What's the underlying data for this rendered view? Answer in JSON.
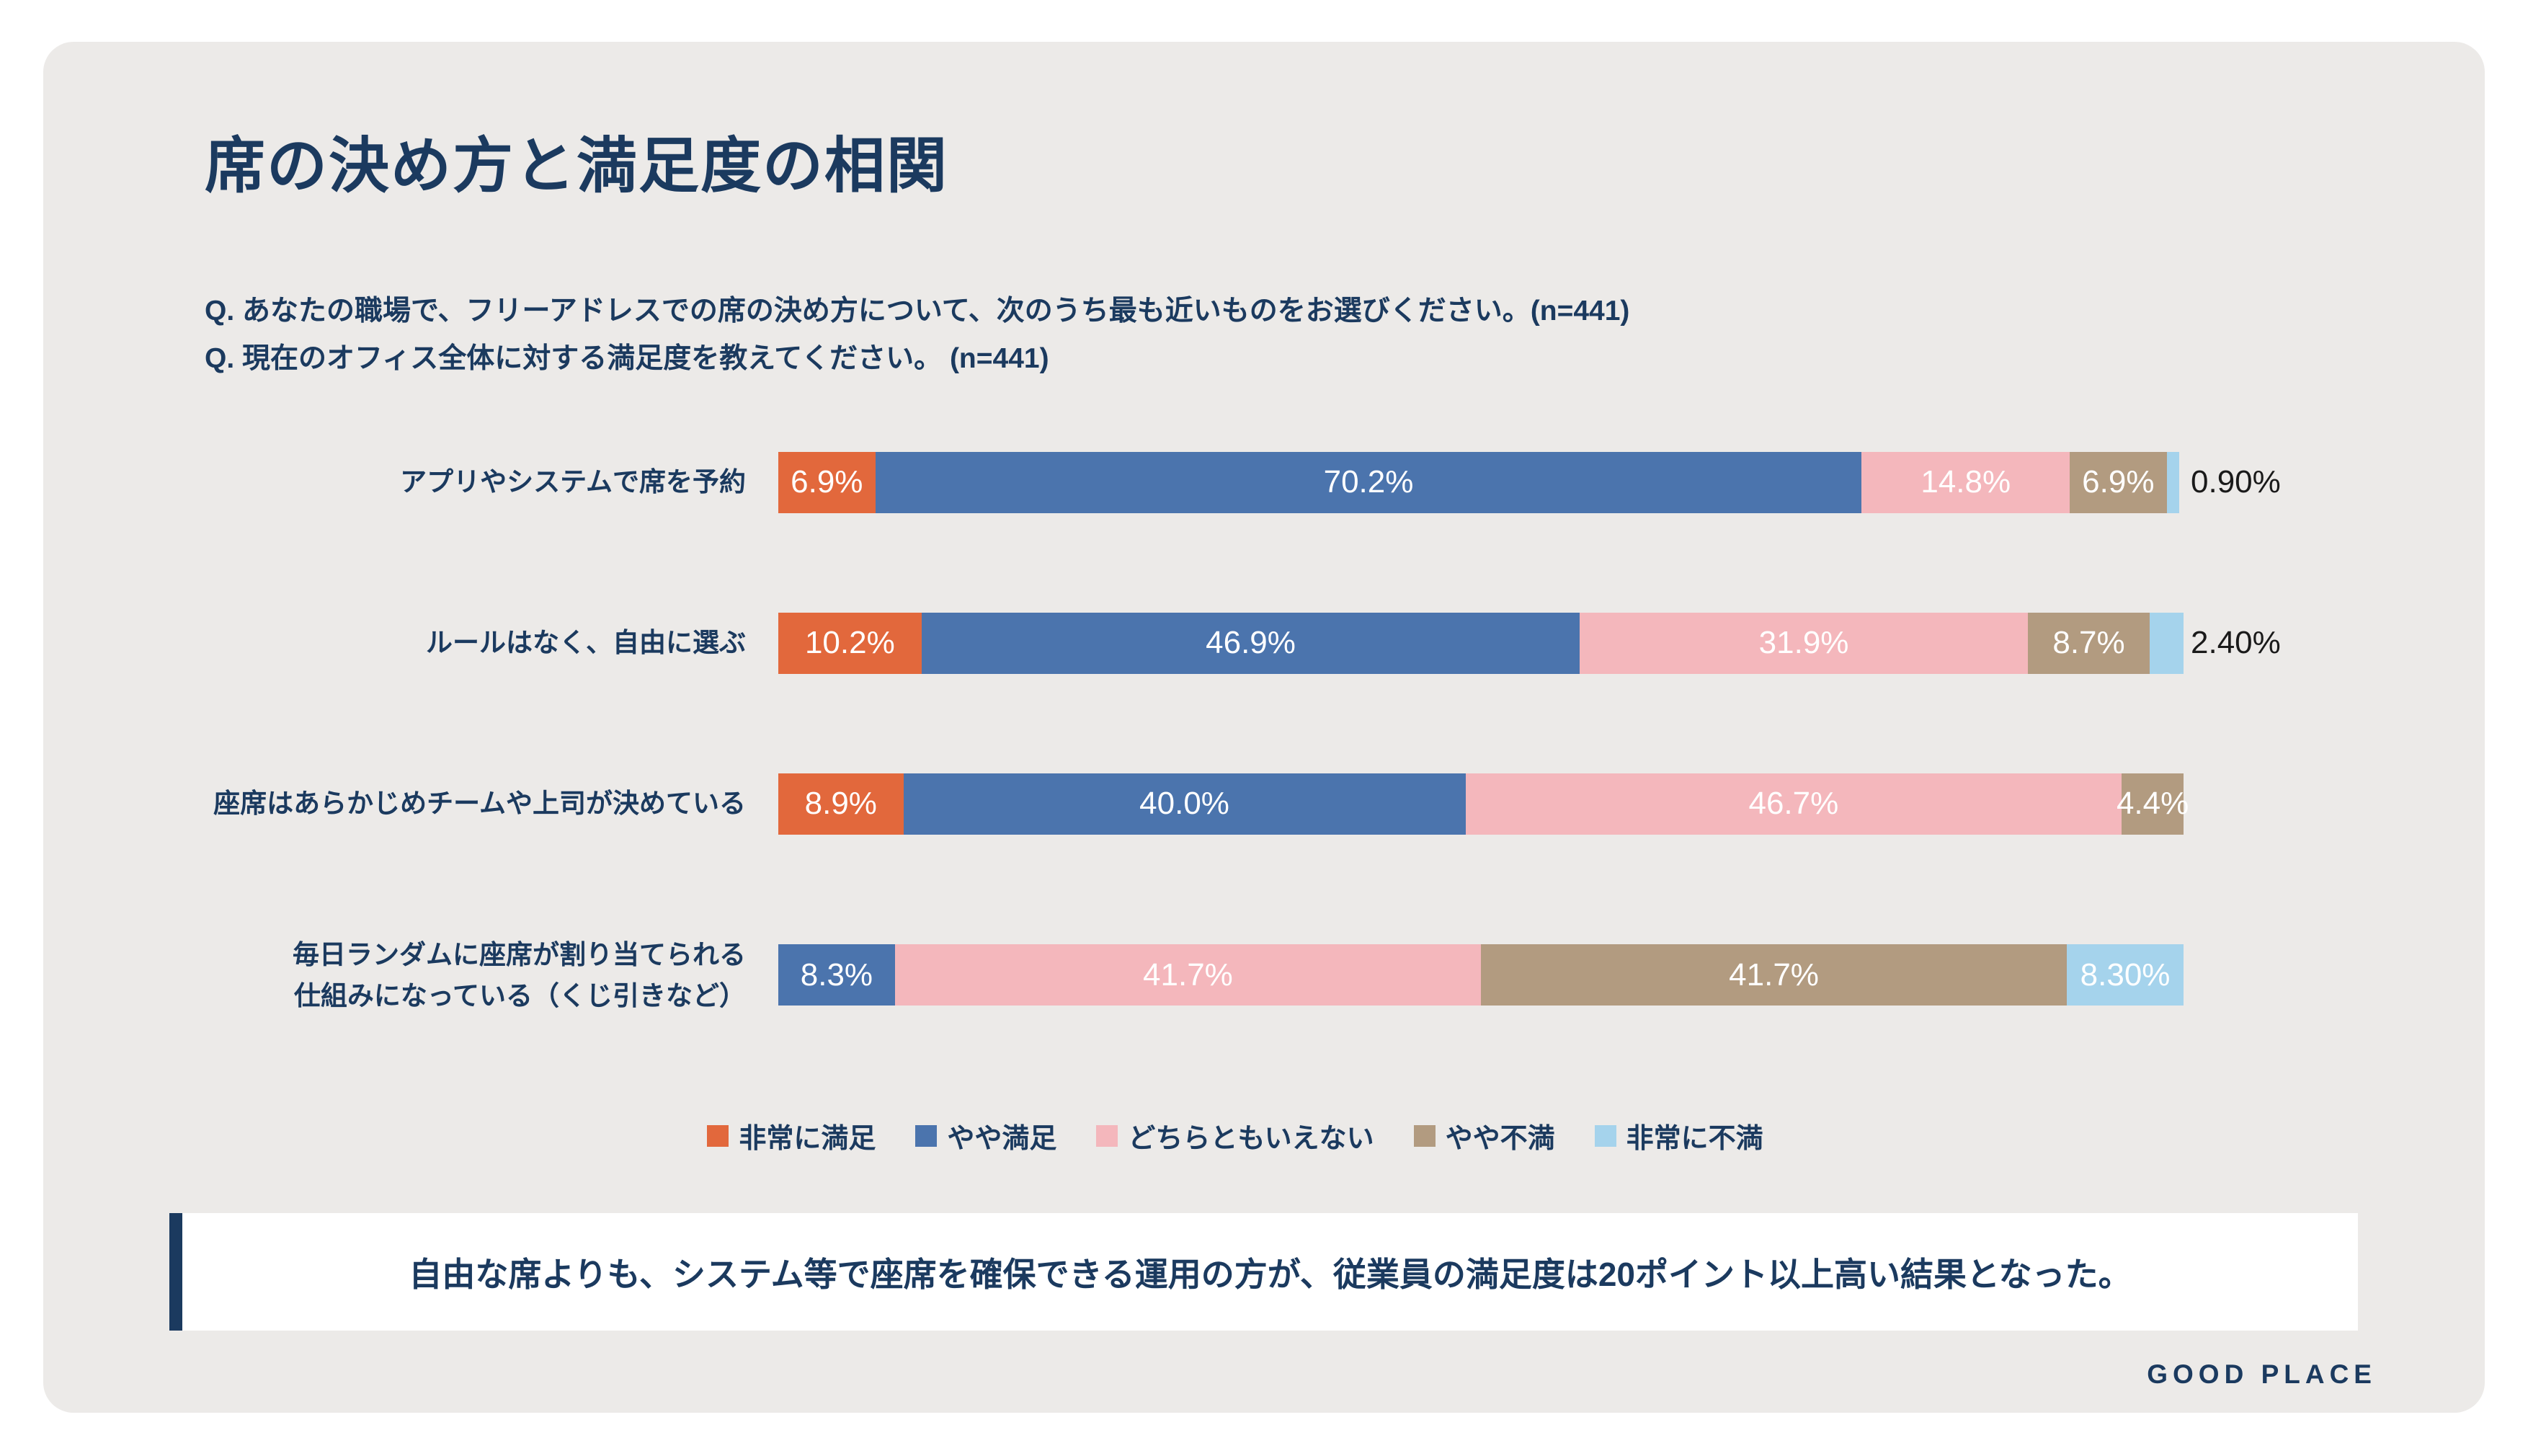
{
  "page": {
    "title": "席の決め方と満足度の相関",
    "questions": [
      "Q. あなたの職場で、フリーアドレスでの席の決め方について、次のうち最も近いものをお選びください。(n=441)",
      "Q. 現在のオフィス全体に対する満足度を教えてください。 (n=441)"
    ],
    "callout": "自由な席よりも、システム等で座席を確保できる運用の方が、従業員の満足度は20ポイント以上高い結果となった。",
    "brand": "GOOD PLACE"
  },
  "colors": {
    "navy": "#1B3A5F",
    "panel_bg": "#ECEAE8",
    "very_satisfied": "#E2683C",
    "somewhat_satisfied": "#4B74AD",
    "neutral": "#F4B7BC",
    "somewhat_dissatisfied": "#B29B80",
    "very_dissatisfied": "#A5D3EC"
  },
  "chart_data": {
    "type": "bar",
    "subtype": "horizontal-stacked",
    "title": "席の決め方と満足度の相関",
    "unit": "%",
    "xlim": [
      0,
      100
    ],
    "legend_position": "bottom",
    "legend": [
      {
        "key": "very_satisfied",
        "label": "非常に満足",
        "color": "#E2683C"
      },
      {
        "key": "somewhat_satisfied",
        "label": "やや満足",
        "color": "#4B74AD"
      },
      {
        "key": "neutral",
        "label": "どちらともいえない",
        "color": "#F4B7BC"
      },
      {
        "key": "somewhat_dissatisfied",
        "label": "やや不満",
        "color": "#B29B80"
      },
      {
        "key": "very_dissatisfied",
        "label": "非常に不満",
        "color": "#A5D3EC"
      }
    ],
    "rows": [
      {
        "category": "アプリやシステムで席を予約",
        "segments": [
          {
            "key": "very_satisfied",
            "value": 6.9,
            "label": "6.9%",
            "label_position": "inside"
          },
          {
            "key": "somewhat_satisfied",
            "value": 70.2,
            "label": "70.2%",
            "label_position": "inside"
          },
          {
            "key": "neutral",
            "value": 14.8,
            "label": "14.8%",
            "label_position": "inside"
          },
          {
            "key": "somewhat_dissatisfied",
            "value": 6.9,
            "label": "6.9%",
            "label_position": "inside"
          },
          {
            "key": "very_dissatisfied",
            "value": 0.9,
            "label": "0.90%",
            "label_position": "outside"
          }
        ]
      },
      {
        "category": "ルールはなく、自由に選ぶ",
        "segments": [
          {
            "key": "very_satisfied",
            "value": 10.2,
            "label": "10.2%",
            "label_position": "inside"
          },
          {
            "key": "somewhat_satisfied",
            "value": 46.9,
            "label": "46.9%",
            "label_position": "inside"
          },
          {
            "key": "neutral",
            "value": 31.9,
            "label": "31.9%",
            "label_position": "inside"
          },
          {
            "key": "somewhat_dissatisfied",
            "value": 8.7,
            "label": "8.7%",
            "label_position": "inside"
          },
          {
            "key": "very_dissatisfied",
            "value": 2.4,
            "label": "2.40%",
            "label_position": "outside"
          }
        ]
      },
      {
        "category": "座席はあらかじめチームや上司が決めている",
        "segments": [
          {
            "key": "very_satisfied",
            "value": 8.9,
            "label": "8.9%",
            "label_position": "inside"
          },
          {
            "key": "somewhat_satisfied",
            "value": 40.0,
            "label": "40.0%",
            "label_position": "inside"
          },
          {
            "key": "neutral",
            "value": 46.7,
            "label": "46.7%",
            "label_position": "inside"
          },
          {
            "key": "somewhat_dissatisfied",
            "value": 4.4,
            "label": "4.4%",
            "label_position": "inside"
          }
        ]
      },
      {
        "category": "毎日ランダムに座席が割り当てられる\n仕組みになっている（くじ引きなど）",
        "segments": [
          {
            "key": "somewhat_satisfied",
            "value": 8.3,
            "label": "8.3%",
            "label_position": "inside"
          },
          {
            "key": "neutral",
            "value": 41.7,
            "label": "41.7%",
            "label_position": "inside"
          },
          {
            "key": "somewhat_dissatisfied",
            "value": 41.7,
            "label": "41.7%",
            "label_position": "inside"
          },
          {
            "key": "very_dissatisfied",
            "value": 8.3,
            "label": "8.30%",
            "label_position": "inside"
          }
        ]
      }
    ]
  }
}
